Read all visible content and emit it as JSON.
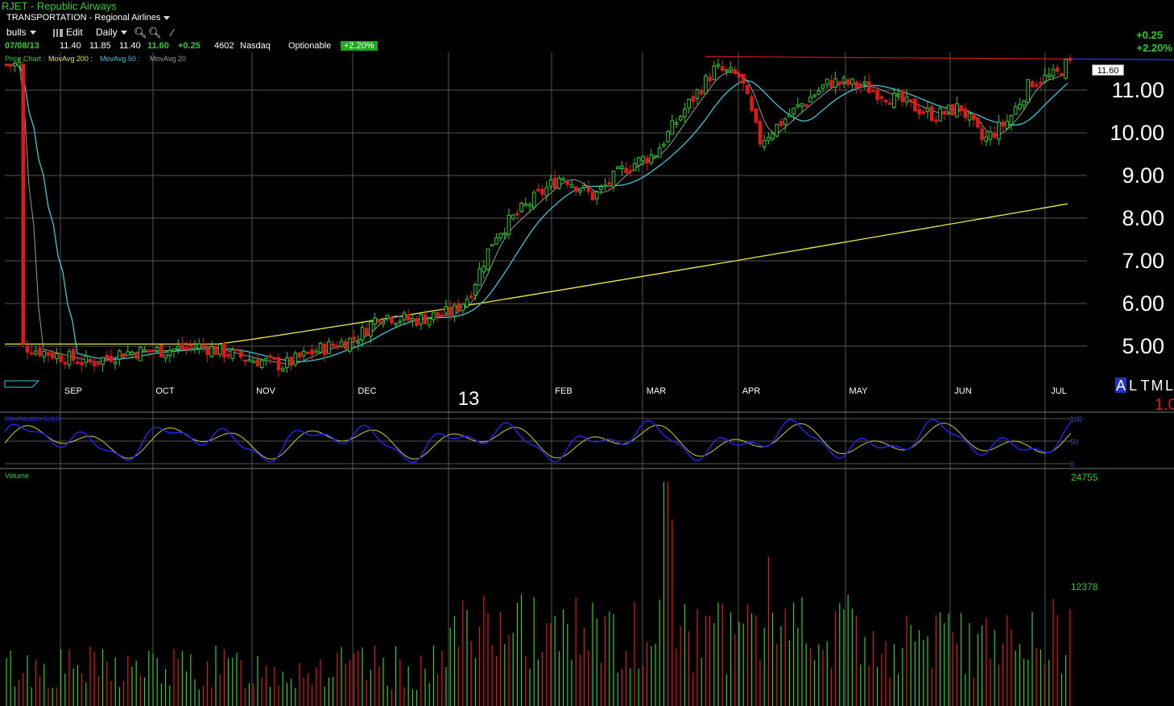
{
  "header": {
    "title": "RJET - Republic Airways",
    "sector": "TRANSPORTATION - Regional Airlines"
  },
  "toolbar": {
    "watchlist": "bulls",
    "edit": "Edit",
    "period": "Daily"
  },
  "quote": {
    "date": "07/08/13",
    "open": "11.40",
    "high": "11.85",
    "low": "11.40",
    "close": "11.60",
    "change": "+0.25",
    "volume": "4602",
    "exchange": "Nasdaq",
    "optionable": "Optionable",
    "change_pct": "+2.20%"
  },
  "studies": {
    "price_chart": "Price Chart :",
    "ma200": "MovAvg 200 :",
    "ma50": "MovAvg 50 :",
    "ma20": "MovAvg 20"
  },
  "right_panel": {
    "change": "+0.25",
    "change_pct": "+2.20%",
    "last": "11.60",
    "scale_letters": [
      "A",
      "L",
      "T",
      "M",
      "L"
    ],
    "scale_value": "1.0"
  },
  "colors": {
    "up": "#2ecc2e",
    "down": "#e01818",
    "ma200": "#e8e84a",
    "ma50": "#3cc8d8",
    "ma20": "#9a9a9a",
    "resistance": "#d01818",
    "stoch_k": "#2222ee",
    "stoch_d": "#cccc33",
    "grid": "#555555"
  },
  "chart_data": {
    "type": "candlestick",
    "symbol": "RJET",
    "ylim": [
      4.4,
      11.9
    ],
    "y_ticks": [
      5,
      6,
      7,
      8,
      9,
      10,
      11
    ],
    "y_tick_labels": [
      "5.00",
      "6.00",
      "7.00",
      "8.00",
      "9.00",
      "10.00",
      "11.00"
    ],
    "x_labels": [
      "SEP",
      "OCT",
      "NOV",
      "DEC",
      "13",
      "FEB",
      "MAR",
      "APR",
      "MAY",
      "JUN",
      "JUL"
    ],
    "close_series": [
      {
        "date": "2012-08-15",
        "close": 5.0
      },
      {
        "date": "2012-08-25",
        "close": 4.8
      },
      {
        "date": "2012-09-05",
        "close": 4.6
      },
      {
        "date": "2012-09-15",
        "close": 4.85
      },
      {
        "date": "2012-09-28",
        "close": 4.9
      },
      {
        "date": "2012-10-10",
        "close": 5.0
      },
      {
        "date": "2012-10-25",
        "close": 4.7
      },
      {
        "date": "2012-11-05",
        "close": 4.55
      },
      {
        "date": "2012-11-15",
        "close": 4.9
      },
      {
        "date": "2012-11-28",
        "close": 5.2
      },
      {
        "date": "2012-12-05",
        "close": 5.75
      },
      {
        "date": "2012-12-15",
        "close": 5.6
      },
      {
        "date": "2012-12-28",
        "close": 5.8
      },
      {
        "date": "2013-01-02",
        "close": 6.2
      },
      {
        "date": "2013-01-10",
        "close": 7.6
      },
      {
        "date": "2013-01-20",
        "close": 8.3
      },
      {
        "date": "2013-01-31",
        "close": 9.0
      },
      {
        "date": "2013-02-10",
        "close": 8.5
      },
      {
        "date": "2013-02-20",
        "close": 9.2
      },
      {
        "date": "2013-03-01",
        "close": 9.5
      },
      {
        "date": "2013-03-10",
        "close": 10.5
      },
      {
        "date": "2013-03-20",
        "close": 11.5
      },
      {
        "date": "2013-03-28",
        "close": 11.3
      },
      {
        "date": "2013-04-03",
        "close": 9.8
      },
      {
        "date": "2013-04-15",
        "close": 10.6
      },
      {
        "date": "2013-04-25",
        "close": 11.2
      },
      {
        "date": "2013-05-05",
        "close": 11.1
      },
      {
        "date": "2013-05-15",
        "close": 10.8
      },
      {
        "date": "2013-05-28",
        "close": 10.4
      },
      {
        "date": "2013-06-05",
        "close": 10.6
      },
      {
        "date": "2013-06-12",
        "close": 9.8
      },
      {
        "date": "2013-06-20",
        "close": 10.3
      },
      {
        "date": "2013-06-27",
        "close": 11.2
      },
      {
        "date": "2013-07-05",
        "close": 11.35
      },
      {
        "date": "2013-07-08",
        "close": 11.6
      }
    ],
    "moving_averages": [
      {
        "name": "MovAvg 200",
        "from": 5.05,
        "to": 8.35
      },
      {
        "name": "MovAvg 50",
        "from": 4.95,
        "to": 10.85
      },
      {
        "name": "MovAvg 20",
        "from": 4.9,
        "to": 11.1
      }
    ],
    "resistance": 11.75,
    "last": 11.6,
    "stochastics": {
      "label": "Stochastics 5,3,3",
      "ylim": [
        0,
        100
      ],
      "ticks": [
        "100",
        "50",
        "0"
      ]
    },
    "volume": {
      "label": "Volume",
      "ticks": [
        "24755",
        "12378"
      ],
      "max": 24755,
      "peak_date": "2013-03-05"
    }
  }
}
